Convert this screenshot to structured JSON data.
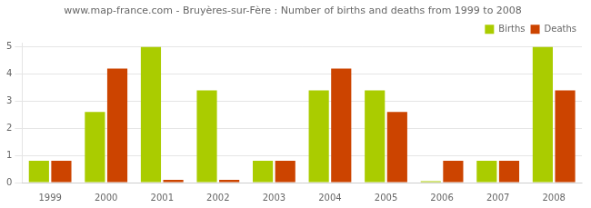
{
  "chart_data": {
    "type": "bar",
    "title": "www.map-france.com - Bruyères-sur-Fère : Number of births and deaths from 1999 to 2008",
    "categories": [
      "1999",
      "2000",
      "2001",
      "2002",
      "2003",
      "2004",
      "2005",
      "2006",
      "2007",
      "2008"
    ],
    "series": [
      {
        "name": "Births",
        "color": "#aacc00",
        "values": [
          0.8,
          2.6,
          5.0,
          3.4,
          0.8,
          3.4,
          3.4,
          0.05,
          0.8,
          5.0
        ]
      },
      {
        "name": "Deaths",
        "color": "#cc4400",
        "values": [
          0.8,
          4.2,
          0.1,
          0.1,
          0.8,
          4.2,
          2.6,
          0.8,
          0.8,
          3.4
        ]
      }
    ],
    "ylim": [
      0,
      5.15
    ],
    "yticks": [
      0,
      1,
      2,
      3,
      4,
      5
    ],
    "grid": true,
    "legend": "upper right"
  }
}
